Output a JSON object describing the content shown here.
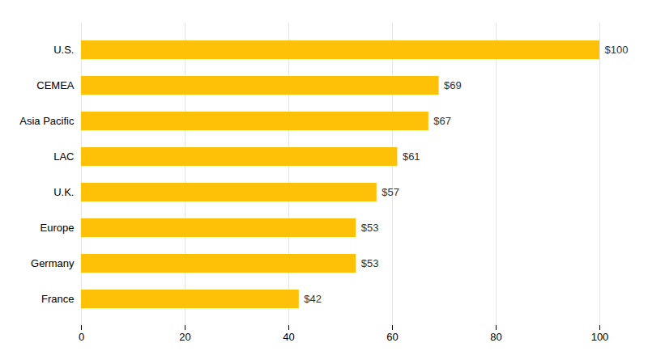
{
  "chart_data": {
    "type": "bar",
    "orientation": "horizontal",
    "categories": [
      "U.S.",
      "CEMEA",
      "Asia Pacific",
      "LAC",
      "U.K.",
      "Europe",
      "Germany",
      "France"
    ],
    "values": [
      100,
      69,
      67,
      61,
      57,
      53,
      53,
      42
    ],
    "value_labels": [
      "$100",
      "$69",
      "$67",
      "$61",
      "$57",
      "$53",
      "$53",
      "$42"
    ],
    "data_labels": true,
    "color": "#FFC107",
    "xlim": [
      0,
      100
    ],
    "xticks": [
      0,
      20,
      40,
      60,
      80,
      100
    ],
    "grid": true
  }
}
